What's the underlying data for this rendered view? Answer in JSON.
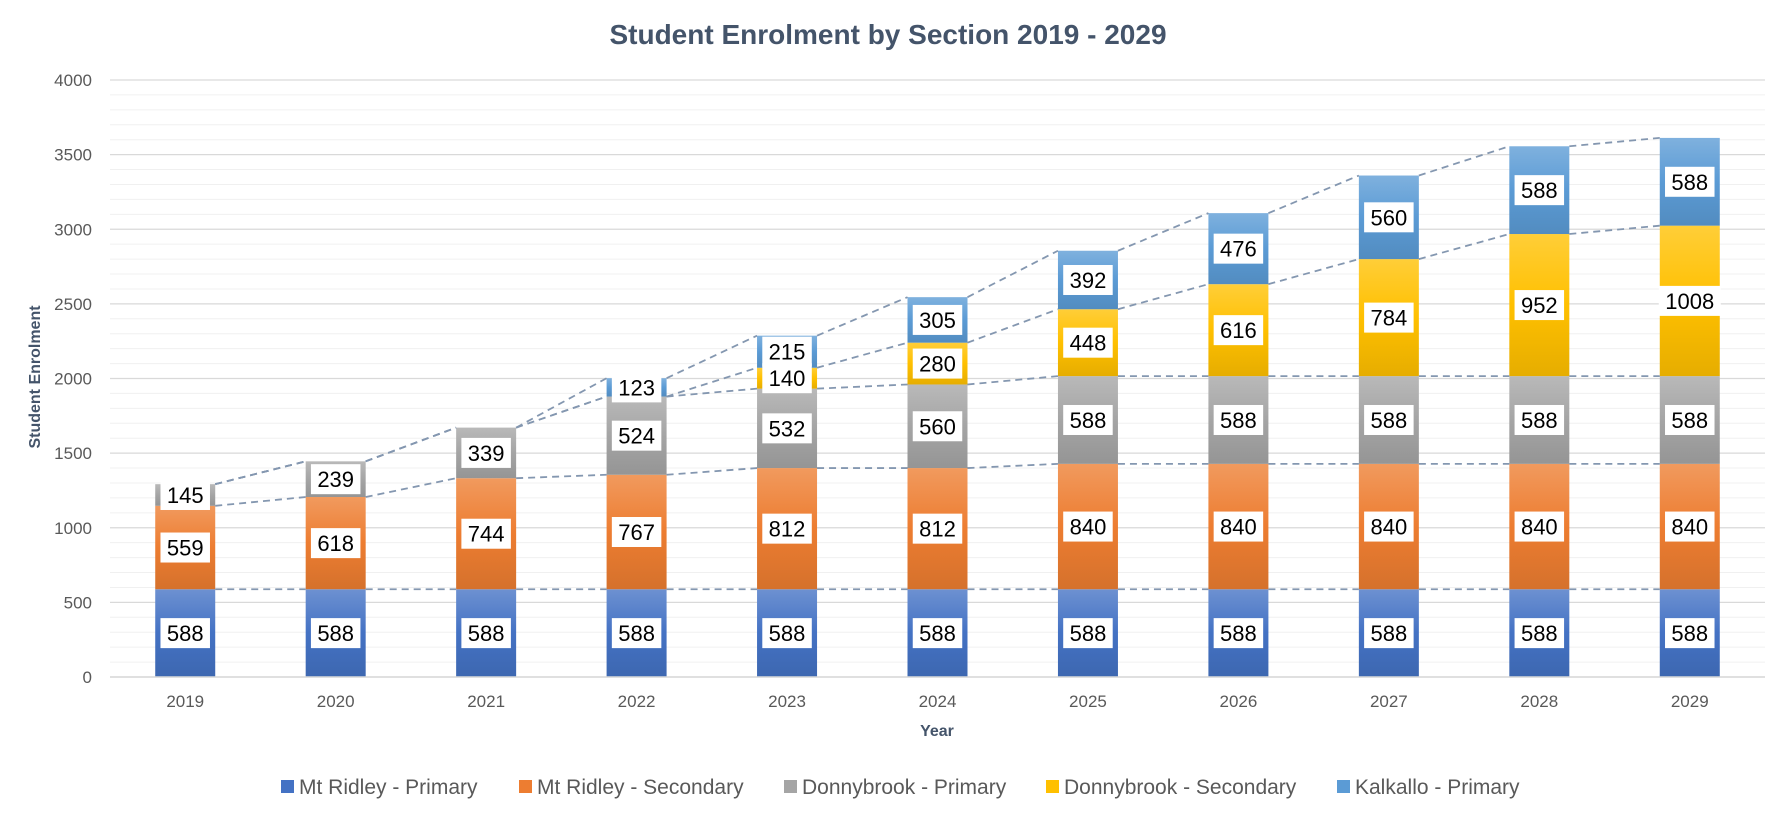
{
  "chart_data": {
    "type": "bar",
    "stacked": true,
    "title": "Student Enrolment by Section 2019 - 2029",
    "xlabel": "Year",
    "ylabel": "Student Enrolment",
    "ylim": [
      0,
      4000
    ],
    "yticks": [
      "0",
      "500",
      "1000",
      "1500",
      "2000",
      "2500",
      "3000",
      "3500",
      "4000"
    ],
    "grid": true,
    "legend_position": "bottom",
    "series_lines": "dashed",
    "categories": [
      "2019",
      "2020",
      "2021",
      "2022",
      "2023",
      "2024",
      "2025",
      "2026",
      "2027",
      "2028",
      "2029"
    ],
    "series": [
      {
        "name": "Mt Ridley - Primary",
        "color": "#4472c4",
        "values": [
          588,
          588,
          588,
          588,
          588,
          588,
          588,
          588,
          588,
          588,
          588
        ]
      },
      {
        "name": "Mt Ridley - Secondary",
        "color": "#ed7d31",
        "values": [
          559,
          618,
          744,
          767,
          812,
          812,
          840,
          840,
          840,
          840,
          840
        ]
      },
      {
        "name": "Donnybrook - Primary",
        "color": "#a5a5a5",
        "values": [
          145,
          239,
          339,
          524,
          532,
          560,
          588,
          588,
          588,
          588,
          588
        ]
      },
      {
        "name": "Donnybrook - Secondary",
        "color": "#ffc000",
        "values": [
          0,
          0,
          0,
          0,
          140,
          280,
          448,
          616,
          784,
          952,
          1008
        ]
      },
      {
        "name": "Kalkallo - Primary",
        "color": "#5b9bd5",
        "values": [
          0,
          0,
          0,
          123,
          215,
          305,
          392,
          476,
          560,
          588,
          588
        ]
      }
    ]
  }
}
